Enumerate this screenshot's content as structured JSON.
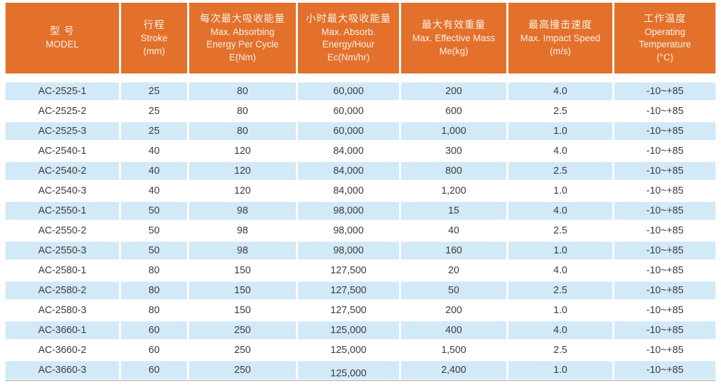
{
  "colors": {
    "header_bg": "#E3702B",
    "header_text": "#FBF2E6",
    "row_alt_bg": "#D2E9F8",
    "row_bg": "#FFFFFF",
    "cell_text": "#3C3C3C",
    "bottom_rule": "#C9C9C9"
  },
  "spec_table": {
    "headers": [
      {
        "key": "model",
        "zh": "型 号",
        "en_lines": [
          "MODEL"
        ]
      },
      {
        "key": "stroke",
        "zh": "行程",
        "en_lines": [
          "Stroke",
          "(mm)"
        ]
      },
      {
        "key": "energy-per-cycle",
        "zh": "每次最大吸收能量",
        "en_lines": [
          "Max. Absorbing",
          "Energy Per Cycle",
          "E(Nm)"
        ]
      },
      {
        "key": "energy-per-hour",
        "zh": "小时最大吸收能量",
        "en_lines": [
          "Max. Absorb.",
          "Energy/Hour",
          "Ec(Nm/hr)"
        ]
      },
      {
        "key": "effective-mass",
        "zh": "最大有效重量",
        "en_lines": [
          "Max. Effective Mass",
          "Me(kg)"
        ]
      },
      {
        "key": "impact-speed",
        "zh": "最高撞击速度",
        "en_lines": [
          "Max. Impact Speed",
          "(m/s)"
        ]
      },
      {
        "key": "operating-temp",
        "zh": "工作温度",
        "en_lines": [
          "Operating",
          "Temperature",
          "(°C)"
        ]
      }
    ],
    "rows": [
      [
        "AC-2525-1",
        "25",
        "80",
        "60,000",
        "200",
        "4.0",
        "-10~+85"
      ],
      [
        "AC-2525-2",
        "25",
        "80",
        "60,000",
        "600",
        "2.5",
        "-10~+85"
      ],
      [
        "AC-2525-3",
        "25",
        "80",
        "60,000",
        "1,000",
        "1.0",
        "-10~+85"
      ],
      [
        "AC-2540-1",
        "40",
        "120",
        "84,000",
        "300",
        "4.0",
        "-10~+85"
      ],
      [
        "AC-2540-2",
        "40",
        "120",
        "84,000",
        "800",
        "2.5",
        "-10~+85"
      ],
      [
        "AC-2540-3",
        "40",
        "120",
        "84,000",
        "1,200",
        "1.0",
        "-10~+85"
      ],
      [
        "AC-2550-1",
        "50",
        "98",
        "98,000",
        "15",
        "4.0",
        "-10~+85"
      ],
      [
        "AC-2550-2",
        "50",
        "98",
        "98,000",
        "40",
        "2.5",
        "-10~+85"
      ],
      [
        "AC-2550-3",
        "50",
        "98",
        "98,000",
        "160",
        "1.0",
        "-10~+85"
      ],
      [
        "AC-2580-1",
        "80",
        "150",
        "127,500",
        "20",
        "4.0",
        "-10~+85"
      ],
      [
        "AC-2580-2",
        "80",
        "150",
        "127,500",
        "50",
        "2.5",
        "-10~+85"
      ],
      [
        "AC-2580-3",
        "80",
        "150",
        "127,500",
        "200",
        "1.0",
        "-10~+85"
      ],
      [
        "AC-3660-1",
        "60",
        "250",
        "125,000",
        "400",
        "4.0",
        "-10~+85"
      ],
      [
        "AC-3660-2",
        "60",
        "250",
        "125,000",
        "1,500",
        "2.5",
        "-10~+85"
      ],
      [
        "AC-3660-3",
        "60",
        "250",
        "125,000",
        "2,400",
        "1.0",
        "-10~+85"
      ]
    ]
  }
}
